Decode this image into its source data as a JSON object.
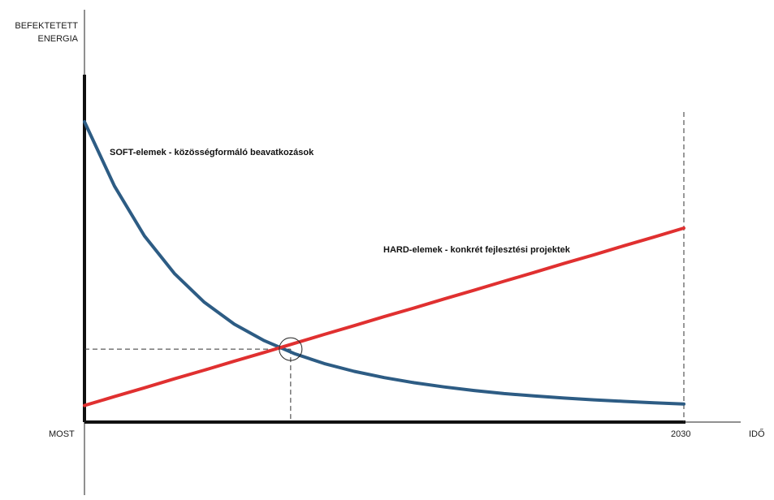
{
  "chart_data": {
    "type": "line",
    "ylabel_lines": [
      "BEFEKTETETT",
      "ENERGIA"
    ],
    "xlabel": "IDŐ",
    "x_start_label": "MOST",
    "x_end_label": "2030",
    "x": [
      0,
      0.05,
      0.1,
      0.15,
      0.2,
      0.25,
      0.3,
      0.35,
      0.4,
      0.45,
      0.5,
      0.55,
      0.6,
      0.65,
      0.7,
      0.75,
      0.8,
      0.85,
      0.9,
      0.95,
      1
    ],
    "xlim": [
      0,
      1.1
    ],
    "ylim": [
      0,
      1.16
    ],
    "series": [
      {
        "name": "SOFT-elemek - közösségformáló beavatkozások",
        "color": "#2d5c84",
        "values": [
          1,
          0.786,
          0.62,
          0.495,
          0.399,
          0.326,
          0.271,
          0.228,
          0.195,
          0.169,
          0.148,
          0.131,
          0.117,
          0.105,
          0.095,
          0.087,
          0.08,
          0.074,
          0.069,
          0.064,
          0.06
        ]
      },
      {
        "name": "HARD-elemek - konkrét fejlesztési projektek",
        "color": "#e03030",
        "values": [
          0.055,
          0.085,
          0.114,
          0.144,
          0.173,
          0.203,
          0.232,
          0.262,
          0.292,
          0.321,
          0.351,
          0.38,
          0.41,
          0.439,
          0.469,
          0.498,
          0.528,
          0.557,
          0.587,
          0.616,
          0.646
        ]
      }
    ],
    "intersection": {
      "x": 0.344,
      "y": 0.243
    },
    "grid": false,
    "legend": "inline labels"
  }
}
